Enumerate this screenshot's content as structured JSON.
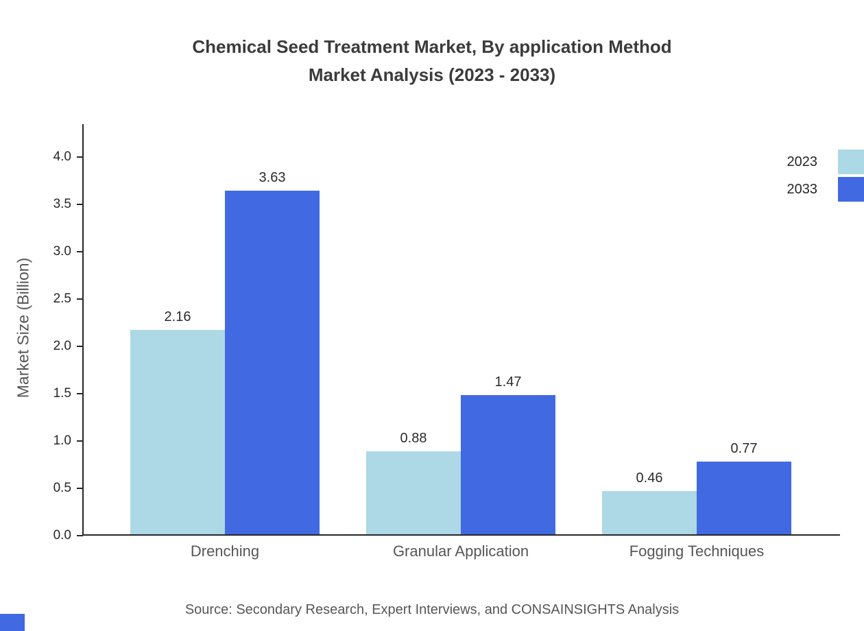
{
  "title": {
    "line1": "Chemical Seed Treatment Market, By application Method",
    "line2": "Market Analysis (2023 - 2033)"
  },
  "source": "Source: Secondary Research, Expert Interviews, and CONSAINSIGHTS Analysis",
  "colors": {
    "series_2023": "#ADD8E6",
    "series_2033": "#4169E1",
    "axis": "#262626",
    "accent": "#4169E1"
  },
  "chart_data": {
    "type": "bar",
    "title": "Chemical Seed Treatment Market, By application Method Market Analysis (2023 - 2033)",
    "categories": [
      "Drenching",
      "Granular Application",
      "Fogging Techniques"
    ],
    "series": [
      {
        "name": "2023",
        "color": "#ADD8E6",
        "values": [
          2.16,
          0.88,
          0.46
        ]
      },
      {
        "name": "2033",
        "color": "#4169E1",
        "values": [
          3.63,
          1.47,
          0.77
        ]
      }
    ],
    "xlabel": "",
    "ylabel": "Market Size (Billion)",
    "yticks": [
      0.0,
      0.5,
      1.0,
      1.5,
      2.0,
      2.5,
      3.0,
      3.5,
      4.0
    ],
    "ylim": [
      0,
      4.0
    ],
    "grid": false,
    "legend_position": "top-right"
  }
}
